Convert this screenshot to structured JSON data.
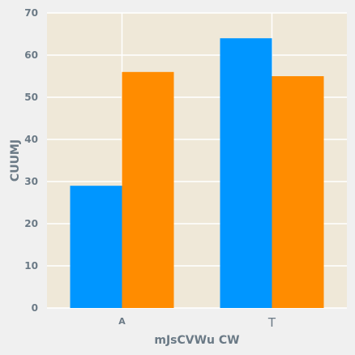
{
  "chart_data": {
    "type": "bar",
    "categories": [
      "A",
      "T"
    ],
    "series": [
      {
        "values": [
          29,
          64
        ],
        "color": "#0096ff"
      },
      {
        "values": [
          56,
          55
        ],
        "color": "#ff8c00"
      }
    ],
    "title": "",
    "xlabel": "mJsCVWu CW",
    "ylabel": "CUUMJ",
    "ylim": [
      0,
      70
    ],
    "yticks": [
      0,
      10,
      20,
      30,
      40,
      50,
      60,
      70
    ],
    "grid": true,
    "plot_background": "#efe8d8",
    "grid_color": "#ffffff",
    "tick_label_color": "#6b7a86"
  }
}
